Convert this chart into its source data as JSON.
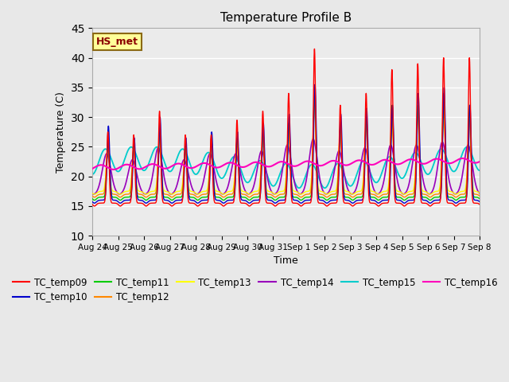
{
  "title": "Temperature Profile B",
  "xlabel": "Time",
  "ylabel": "Temperature (C)",
  "ylim": [
    10,
    45
  ],
  "annotation": "HS_met",
  "series_colors": {
    "TC_temp09": "#FF0000",
    "TC_temp10": "#0000CC",
    "TC_temp11": "#00CC00",
    "TC_temp12": "#FF8800",
    "TC_temp13": "#FFFF00",
    "TC_temp14": "#9900BB",
    "TC_temp15": "#00CCCC",
    "TC_temp16": "#FF00BB"
  },
  "x_tick_labels": [
    "Aug 24",
    "Aug 25",
    "Aug 26",
    "Aug 27",
    "Aug 28",
    "Aug 29",
    "Aug 30",
    "Aug 31",
    "Sep 1",
    "Sep 2",
    "Sep 3",
    "Sep 4",
    "Sep 5",
    "Sep 6",
    "Sep 7",
    "Sep 8"
  ],
  "background_color": "#E8E8E8",
  "plot_bg": "#EBEBEB",
  "figsize": [
    6.4,
    4.8
  ],
  "dpi": 100
}
